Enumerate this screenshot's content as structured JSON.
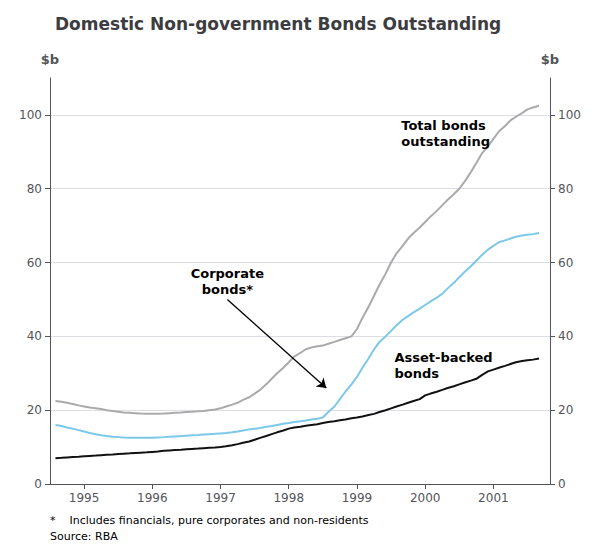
{
  "chart_data": {
    "type": "line",
    "title": "Domestic Non-government Bonds Outstanding",
    "ylabel": "$b",
    "y2label": "$b",
    "x": [
      1994.58,
      1994.67,
      1994.75,
      1994.83,
      1994.92,
      1995.0,
      1995.08,
      1995.17,
      1995.25,
      1995.33,
      1995.42,
      1995.5,
      1995.58,
      1995.67,
      1995.75,
      1995.83,
      1995.92,
      1996.0,
      1996.08,
      1996.17,
      1996.25,
      1996.33,
      1996.42,
      1996.5,
      1996.58,
      1996.67,
      1996.75,
      1996.83,
      1996.92,
      1997.0,
      1997.08,
      1997.17,
      1997.25,
      1997.33,
      1997.42,
      1997.5,
      1997.58,
      1997.67,
      1997.75,
      1997.83,
      1997.92,
      1998.0,
      1998.08,
      1998.17,
      1998.25,
      1998.33,
      1998.42,
      1998.5,
      1998.58,
      1998.67,
      1998.75,
      1998.83,
      1998.92,
      1999.0,
      1999.08,
      1999.17,
      1999.25,
      1999.33,
      1999.42,
      1999.5,
      1999.58,
      1999.67,
      1999.75,
      1999.83,
      1999.92,
      2000.0,
      2000.08,
      2000.17,
      2000.25,
      2000.33,
      2000.42,
      2000.5,
      2000.58,
      2000.67,
      2000.75,
      2000.83,
      2000.92,
      2001.0,
      2001.08,
      2001.17,
      2001.25,
      2001.33,
      2001.42,
      2001.5,
      2001.58,
      2001.67
    ],
    "series": [
      {
        "color": "#aaaaaa",
        "values": [
          22.5,
          22.3,
          22.0,
          21.7,
          21.3,
          21.0,
          20.7,
          20.5,
          20.3,
          20.0,
          19.8,
          19.6,
          19.4,
          19.3,
          19.2,
          19.1,
          19.0,
          19.0,
          19.0,
          19.1,
          19.2,
          19.3,
          19.4,
          19.5,
          19.6,
          19.7,
          19.8,
          20.0,
          20.2,
          20.5,
          21.0,
          21.5,
          22.0,
          22.8,
          23.5,
          24.5,
          25.5,
          27.0,
          28.5,
          30.0,
          31.5,
          33.0,
          34.5,
          35.5,
          36.5,
          37.0,
          37.3,
          37.5,
          38.0,
          38.5,
          39.0,
          39.5,
          40.0,
          42.0,
          45.0,
          48.0,
          51.0,
          54.0,
          57.0,
          60.0,
          62.5,
          64.5,
          66.5,
          68.0,
          69.5,
          71.0,
          72.5,
          74.0,
          75.5,
          77.0,
          78.5,
          80.0,
          82.0,
          84.5,
          87.0,
          89.5,
          91.5,
          93.5,
          95.5,
          97.0,
          98.5,
          99.5,
          100.5,
          101.5,
          102.0,
          102.5
        ]
      },
      {
        "color": "#7bc8e8",
        "values": [
          16.0,
          15.7,
          15.3,
          15.0,
          14.6,
          14.2,
          13.8,
          13.5,
          13.2,
          13.0,
          12.8,
          12.7,
          12.6,
          12.5,
          12.5,
          12.5,
          12.5,
          12.5,
          12.6,
          12.7,
          12.8,
          12.9,
          13.0,
          13.1,
          13.2,
          13.3,
          13.4,
          13.5,
          13.6,
          13.7,
          13.8,
          14.0,
          14.2,
          14.5,
          14.8,
          15.0,
          15.2,
          15.5,
          15.7,
          16.0,
          16.3,
          16.5,
          16.8,
          17.0,
          17.2,
          17.5,
          17.7,
          18.0,
          19.5,
          21.0,
          23.0,
          25.0,
          27.0,
          29.0,
          31.5,
          34.0,
          36.5,
          38.5,
          40.0,
          41.5,
          43.0,
          44.5,
          45.5,
          46.5,
          47.5,
          48.5,
          49.5,
          50.5,
          51.5,
          53.0,
          54.5,
          56.0,
          57.5,
          59.0,
          60.5,
          62.0,
          63.5,
          64.5,
          65.5,
          66.0,
          66.5,
          67.0,
          67.3,
          67.5,
          67.7,
          68.0
        ]
      },
      {
        "color": "#111111",
        "values": [
          7.0,
          7.1,
          7.2,
          7.3,
          7.4,
          7.5,
          7.6,
          7.7,
          7.8,
          7.9,
          8.0,
          8.1,
          8.2,
          8.3,
          8.4,
          8.5,
          8.6,
          8.7,
          8.8,
          9.0,
          9.1,
          9.2,
          9.3,
          9.4,
          9.5,
          9.6,
          9.7,
          9.8,
          9.9,
          10.0,
          10.2,
          10.5,
          10.8,
          11.2,
          11.5,
          12.0,
          12.5,
          13.0,
          13.5,
          14.0,
          14.5,
          15.0,
          15.3,
          15.5,
          15.8,
          16.0,
          16.2,
          16.5,
          16.8,
          17.0,
          17.3,
          17.5,
          17.8,
          18.0,
          18.3,
          18.7,
          19.0,
          19.5,
          20.0,
          20.5,
          21.0,
          21.5,
          22.0,
          22.5,
          23.0,
          24.0,
          24.5,
          25.0,
          25.5,
          26.0,
          26.5,
          27.0,
          27.5,
          28.0,
          28.5,
          29.5,
          30.5,
          31.0,
          31.5,
          32.0,
          32.5,
          33.0,
          33.3,
          33.5,
          33.7,
          34.0
        ]
      }
    ],
    "xlim": [
      1994.5,
      2001.83
    ],
    "xticks": [
      1995,
      1996,
      1997,
      1998,
      1999,
      2000,
      2001
    ],
    "ylim": [
      0,
      110
    ],
    "yticks": [
      0,
      20,
      40,
      60,
      80,
      100
    ],
    "y2lim": [
      0,
      110
    ],
    "y2ticks": [
      0,
      20,
      40,
      60,
      80,
      100
    ],
    "grid": true,
    "annotations": [
      {
        "text": "Corporate\nbonds*",
        "x": 1997.1,
        "y": 50.0,
        "arrow_to": [
          1998.55,
          26.0
        ]
      },
      {
        "text": "Total bonds\noutstanding",
        "x": 1999.65,
        "y": 90.0
      },
      {
        "text": "Asset-backed\nbonds",
        "x": 1999.55,
        "y": 36.5
      }
    ],
    "footnotes": [
      "*    Includes financials, pure corporates and non-residents",
      "Source: RBA"
    ]
  }
}
